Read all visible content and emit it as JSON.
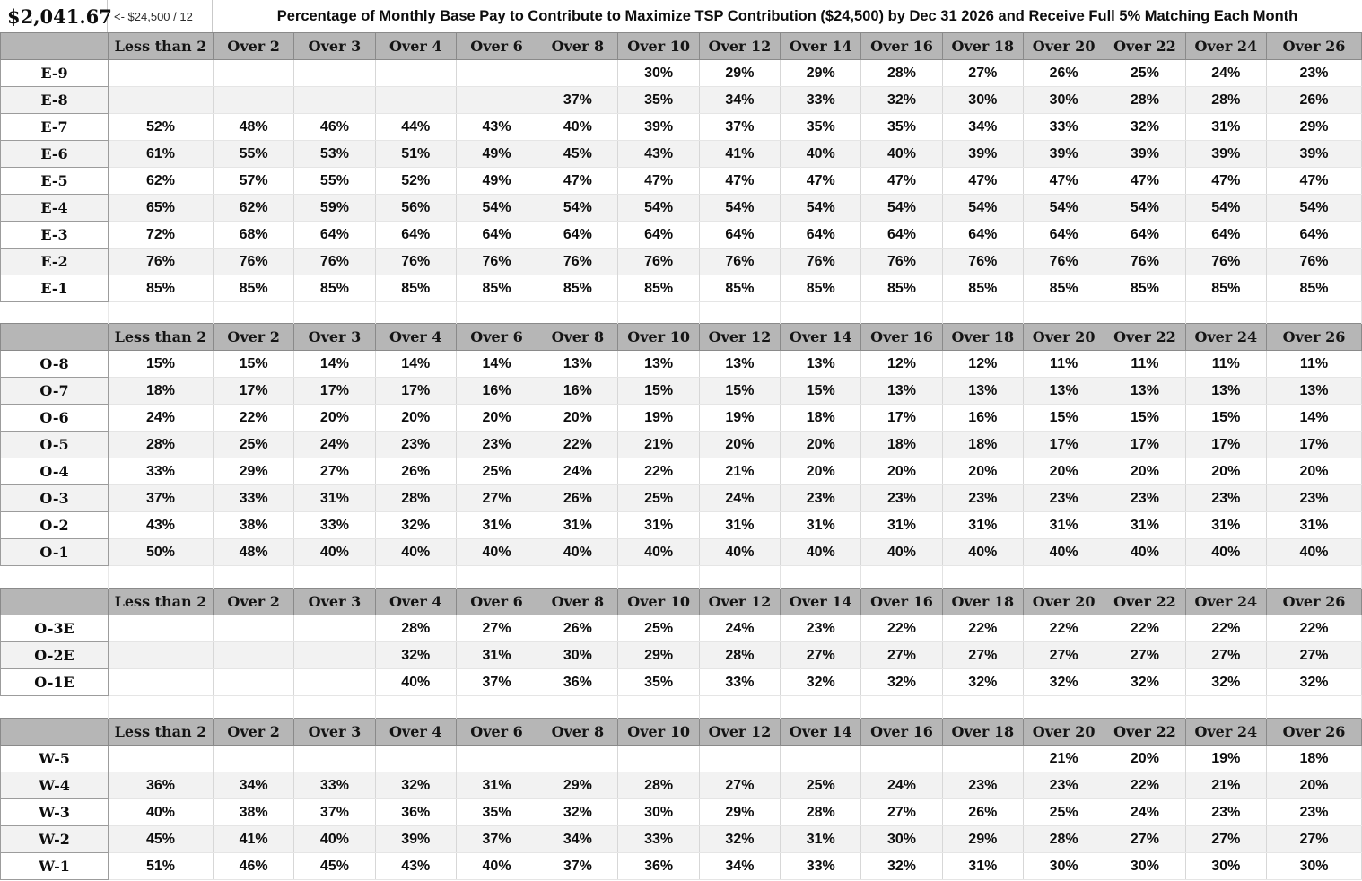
{
  "top": {
    "monthly_amount": "$2,041.67",
    "formula_note": "<- $24,500 / 12",
    "title": "Percentage of Monthly Base Pay to Contribute to Maximize TSP Contribution ($24,500) by Dec 31 2026 and Receive Full 5% Matching Each Month"
  },
  "chart_data": {
    "type": "table",
    "title": "Percentage of Monthly Base Pay to Contribute to Maximize TSP Contribution ($24,500) by Dec 31 2026 and Receive Full 5% Matching Each Month",
    "monthly_amount": "$2,041.67",
    "formula_note": "<- $24,500 / 12",
    "columns": [
      "Less than 2",
      "Over 2",
      "Over 3",
      "Over 4",
      "Over 6",
      "Over 8",
      "Over 10",
      "Over 12",
      "Over 14",
      "Over 16",
      "Over 18",
      "Over 20",
      "Over 22",
      "Over 24",
      "Over 26"
    ],
    "sections": [
      {
        "name": "enlisted",
        "rows": [
          {
            "grade": "E-9",
            "values": [
              "",
              "",
              "",
              "",
              "",
              "",
              "30%",
              "29%",
              "29%",
              "28%",
              "27%",
              "26%",
              "25%",
              "24%",
              "23%"
            ]
          },
          {
            "grade": "E-8",
            "values": [
              "",
              "",
              "",
              "",
              "",
              "37%",
              "35%",
              "34%",
              "33%",
              "32%",
              "30%",
              "30%",
              "28%",
              "28%",
              "26%"
            ]
          },
          {
            "grade": "E-7",
            "values": [
              "52%",
              "48%",
              "46%",
              "44%",
              "43%",
              "40%",
              "39%",
              "37%",
              "35%",
              "35%",
              "34%",
              "33%",
              "32%",
              "31%",
              "29%"
            ]
          },
          {
            "grade": "E-6",
            "values": [
              "61%",
              "55%",
              "53%",
              "51%",
              "49%",
              "45%",
              "43%",
              "41%",
              "40%",
              "40%",
              "39%",
              "39%",
              "39%",
              "39%",
              "39%"
            ]
          },
          {
            "grade": "E-5",
            "values": [
              "62%",
              "57%",
              "55%",
              "52%",
              "49%",
              "47%",
              "47%",
              "47%",
              "47%",
              "47%",
              "47%",
              "47%",
              "47%",
              "47%",
              "47%"
            ]
          },
          {
            "grade": "E-4",
            "values": [
              "65%",
              "62%",
              "59%",
              "56%",
              "54%",
              "54%",
              "54%",
              "54%",
              "54%",
              "54%",
              "54%",
              "54%",
              "54%",
              "54%",
              "54%"
            ]
          },
          {
            "grade": "E-3",
            "values": [
              "72%",
              "68%",
              "64%",
              "64%",
              "64%",
              "64%",
              "64%",
              "64%",
              "64%",
              "64%",
              "64%",
              "64%",
              "64%",
              "64%",
              "64%"
            ]
          },
          {
            "grade": "E-2",
            "values": [
              "76%",
              "76%",
              "76%",
              "76%",
              "76%",
              "76%",
              "76%",
              "76%",
              "76%",
              "76%",
              "76%",
              "76%",
              "76%",
              "76%",
              "76%"
            ]
          },
          {
            "grade": "E-1",
            "values": [
              "85%",
              "85%",
              "85%",
              "85%",
              "85%",
              "85%",
              "85%",
              "85%",
              "85%",
              "85%",
              "85%",
              "85%",
              "85%",
              "85%",
              "85%"
            ]
          }
        ]
      },
      {
        "name": "officer",
        "rows": [
          {
            "grade": "O-8",
            "values": [
              "15%",
              "15%",
              "14%",
              "14%",
              "14%",
              "13%",
              "13%",
              "13%",
              "13%",
              "12%",
              "12%",
              "11%",
              "11%",
              "11%",
              "11%"
            ]
          },
          {
            "grade": "O-7",
            "values": [
              "18%",
              "17%",
              "17%",
              "17%",
              "16%",
              "16%",
              "15%",
              "15%",
              "15%",
              "13%",
              "13%",
              "13%",
              "13%",
              "13%",
              "13%"
            ]
          },
          {
            "grade": "O-6",
            "values": [
              "24%",
              "22%",
              "20%",
              "20%",
              "20%",
              "20%",
              "19%",
              "19%",
              "18%",
              "17%",
              "16%",
              "15%",
              "15%",
              "15%",
              "14%"
            ]
          },
          {
            "grade": "O-5",
            "values": [
              "28%",
              "25%",
              "24%",
              "23%",
              "23%",
              "22%",
              "21%",
              "20%",
              "20%",
              "18%",
              "18%",
              "17%",
              "17%",
              "17%",
              "17%"
            ]
          },
          {
            "grade": "O-4",
            "values": [
              "33%",
              "29%",
              "27%",
              "26%",
              "25%",
              "24%",
              "22%",
              "21%",
              "20%",
              "20%",
              "20%",
              "20%",
              "20%",
              "20%",
              "20%"
            ]
          },
          {
            "grade": "O-3",
            "values": [
              "37%",
              "33%",
              "31%",
              "28%",
              "27%",
              "26%",
              "25%",
              "24%",
              "23%",
              "23%",
              "23%",
              "23%",
              "23%",
              "23%",
              "23%"
            ]
          },
          {
            "grade": "O-2",
            "values": [
              "43%",
              "38%",
              "33%",
              "32%",
              "31%",
              "31%",
              "31%",
              "31%",
              "31%",
              "31%",
              "31%",
              "31%",
              "31%",
              "31%",
              "31%"
            ]
          },
          {
            "grade": "O-1",
            "values": [
              "50%",
              "48%",
              "40%",
              "40%",
              "40%",
              "40%",
              "40%",
              "40%",
              "40%",
              "40%",
              "40%",
              "40%",
              "40%",
              "40%",
              "40%"
            ]
          }
        ]
      },
      {
        "name": "officer-prior-enlisted",
        "rows": [
          {
            "grade": "O-3E",
            "values": [
              "",
              "",
              "",
              "28%",
              "27%",
              "26%",
              "25%",
              "24%",
              "23%",
              "22%",
              "22%",
              "22%",
              "22%",
              "22%",
              "22%"
            ]
          },
          {
            "grade": "O-2E",
            "values": [
              "",
              "",
              "",
              "32%",
              "31%",
              "30%",
              "29%",
              "28%",
              "27%",
              "27%",
              "27%",
              "27%",
              "27%",
              "27%",
              "27%"
            ]
          },
          {
            "grade": "O-1E",
            "values": [
              "",
              "",
              "",
              "40%",
              "37%",
              "36%",
              "35%",
              "33%",
              "32%",
              "32%",
              "32%",
              "32%",
              "32%",
              "32%",
              "32%"
            ]
          }
        ]
      },
      {
        "name": "warrant",
        "rows": [
          {
            "grade": "W-5",
            "values": [
              "",
              "",
              "",
              "",
              "",
              "",
              "",
              "",
              "",
              "",
              "",
              "21%",
              "20%",
              "19%",
              "18%"
            ]
          },
          {
            "grade": "W-4",
            "values": [
              "36%",
              "34%",
              "33%",
              "32%",
              "31%",
              "29%",
              "28%",
              "27%",
              "25%",
              "24%",
              "23%",
              "23%",
              "22%",
              "21%",
              "20%"
            ]
          },
          {
            "grade": "W-3",
            "values": [
              "40%",
              "38%",
              "37%",
              "36%",
              "35%",
              "32%",
              "30%",
              "29%",
              "28%",
              "27%",
              "26%",
              "25%",
              "24%",
              "23%",
              "23%"
            ]
          },
          {
            "grade": "W-2",
            "values": [
              "45%",
              "41%",
              "40%",
              "39%",
              "37%",
              "34%",
              "33%",
              "32%",
              "31%",
              "30%",
              "29%",
              "28%",
              "27%",
              "27%",
              "27%"
            ]
          },
          {
            "grade": "W-1",
            "values": [
              "51%",
              "46%",
              "45%",
              "43%",
              "40%",
              "37%",
              "36%",
              "34%",
              "33%",
              "32%",
              "31%",
              "30%",
              "30%",
              "30%",
              "30%"
            ]
          }
        ]
      }
    ]
  },
  "colors": {
    "header_bg": "#b6b6b6",
    "header_border": "#8a8a8a",
    "stripe_bg": "#f2f2f2",
    "grid_vertical": "#d7d7d7",
    "grid_horizontal": "#e5e5e5",
    "label_border": "#9c9c9c",
    "text": "#0d0d0d"
  }
}
